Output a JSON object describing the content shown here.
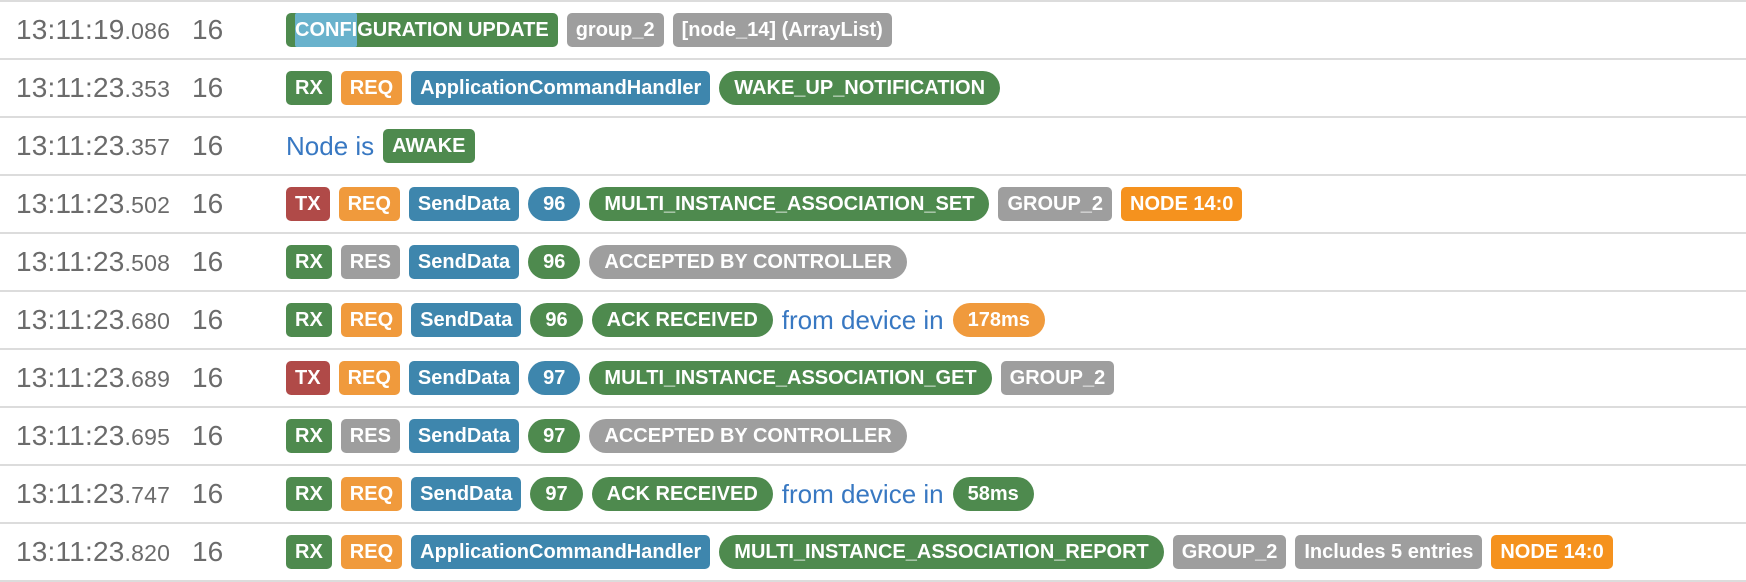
{
  "colors": {
    "green": "#4e8a4e",
    "orange": "#f09a3c",
    "node_orange": "#f5921e",
    "red": "#b04a48",
    "blue": "#3e86ad",
    "gray": "#9e9e9e",
    "text_blue": "#3878c2",
    "time_gray": "#6b6b6b",
    "selection": "#69b2cc",
    "separator": "#dcdcdc"
  },
  "rows": [
    {
      "time": "13:11:19",
      "ms": ".086",
      "node": "16",
      "entries": [
        {
          "kind": "badge",
          "color": "green",
          "label": "CONFIGURATION UPDATE",
          "selected_prefix": "CONFI"
        },
        {
          "kind": "badge",
          "color": "gray",
          "label": "group_2"
        },
        {
          "kind": "badge",
          "color": "gray",
          "label": "[node_14] (ArrayList)"
        }
      ]
    },
    {
      "time": "13:11:23",
      "ms": ".353",
      "node": "16",
      "entries": [
        {
          "kind": "badge",
          "color": "green",
          "label": "RX"
        },
        {
          "kind": "badge",
          "color": "orange",
          "label": "REQ"
        },
        {
          "kind": "badge",
          "color": "blue",
          "label": "ApplicationCommandHandler"
        },
        {
          "kind": "pill",
          "color": "green",
          "label": "WAKE_UP_NOTIFICATION"
        }
      ]
    },
    {
      "time": "13:11:23",
      "ms": ".357",
      "node": "16",
      "entries": [
        {
          "kind": "text",
          "color": "text_blue",
          "label": "Node is"
        },
        {
          "kind": "badge",
          "color": "green",
          "label": "AWAKE"
        }
      ]
    },
    {
      "time": "13:11:23",
      "ms": ".502",
      "node": "16",
      "entries": [
        {
          "kind": "badge",
          "color": "red",
          "label": "TX"
        },
        {
          "kind": "badge",
          "color": "orange",
          "label": "REQ"
        },
        {
          "kind": "badge",
          "color": "blue",
          "label": "SendData"
        },
        {
          "kind": "pill",
          "color": "blue",
          "label": "96"
        },
        {
          "kind": "pill",
          "color": "green",
          "label": "MULTI_INSTANCE_ASSOCIATION_SET"
        },
        {
          "kind": "badge",
          "color": "gray",
          "label": "GROUP_2"
        },
        {
          "kind": "badge",
          "color": "node_orange",
          "label": "NODE 14:0"
        }
      ]
    },
    {
      "time": "13:11:23",
      "ms": ".508",
      "node": "16",
      "entries": [
        {
          "kind": "badge",
          "color": "green",
          "label": "RX"
        },
        {
          "kind": "badge",
          "color": "gray",
          "label": "RES"
        },
        {
          "kind": "badge",
          "color": "blue",
          "label": "SendData"
        },
        {
          "kind": "pill",
          "color": "green",
          "label": "96"
        },
        {
          "kind": "pill",
          "color": "gray",
          "label": "ACCEPTED BY CONTROLLER"
        }
      ]
    },
    {
      "time": "13:11:23",
      "ms": ".680",
      "node": "16",
      "entries": [
        {
          "kind": "badge",
          "color": "green",
          "label": "RX"
        },
        {
          "kind": "badge",
          "color": "orange",
          "label": "REQ"
        },
        {
          "kind": "badge",
          "color": "blue",
          "label": "SendData"
        },
        {
          "kind": "pill",
          "color": "green",
          "label": "96"
        },
        {
          "kind": "pill",
          "color": "green",
          "label": "ACK RECEIVED"
        },
        {
          "kind": "text",
          "color": "text_blue",
          "label": "from device in"
        },
        {
          "kind": "pill",
          "color": "orange",
          "label": "178ms"
        }
      ]
    },
    {
      "time": "13:11:23",
      "ms": ".689",
      "node": "16",
      "entries": [
        {
          "kind": "badge",
          "color": "red",
          "label": "TX"
        },
        {
          "kind": "badge",
          "color": "orange",
          "label": "REQ"
        },
        {
          "kind": "badge",
          "color": "blue",
          "label": "SendData"
        },
        {
          "kind": "pill",
          "color": "blue",
          "label": "97"
        },
        {
          "kind": "pill",
          "color": "green",
          "label": "MULTI_INSTANCE_ASSOCIATION_GET"
        },
        {
          "kind": "badge",
          "color": "gray",
          "label": "GROUP_2"
        }
      ]
    },
    {
      "time": "13:11:23",
      "ms": ".695",
      "node": "16",
      "entries": [
        {
          "kind": "badge",
          "color": "green",
          "label": "RX"
        },
        {
          "kind": "badge",
          "color": "gray",
          "label": "RES"
        },
        {
          "kind": "badge",
          "color": "blue",
          "label": "SendData"
        },
        {
          "kind": "pill",
          "color": "green",
          "label": "97"
        },
        {
          "kind": "pill",
          "color": "gray",
          "label": "ACCEPTED BY CONTROLLER"
        }
      ]
    },
    {
      "time": "13:11:23",
      "ms": ".747",
      "node": "16",
      "entries": [
        {
          "kind": "badge",
          "color": "green",
          "label": "RX"
        },
        {
          "kind": "badge",
          "color": "orange",
          "label": "REQ"
        },
        {
          "kind": "badge",
          "color": "blue",
          "label": "SendData"
        },
        {
          "kind": "pill",
          "color": "green",
          "label": "97"
        },
        {
          "kind": "pill",
          "color": "green",
          "label": "ACK RECEIVED"
        },
        {
          "kind": "text",
          "color": "text_blue",
          "label": "from device in"
        },
        {
          "kind": "pill",
          "color": "green",
          "label": "58ms"
        }
      ]
    },
    {
      "time": "13:11:23",
      "ms": ".820",
      "node": "16",
      "entries": [
        {
          "kind": "badge",
          "color": "green",
          "label": "RX"
        },
        {
          "kind": "badge",
          "color": "orange",
          "label": "REQ"
        },
        {
          "kind": "badge",
          "color": "blue",
          "label": "ApplicationCommandHandler"
        },
        {
          "kind": "pill",
          "color": "green",
          "label": "MULTI_INSTANCE_ASSOCIATION_REPORT"
        },
        {
          "kind": "badge",
          "color": "gray",
          "label": "GROUP_2"
        },
        {
          "kind": "badge",
          "color": "gray",
          "label": "Includes 5 entries"
        },
        {
          "kind": "badge",
          "color": "node_orange",
          "label": "NODE 14:0"
        }
      ]
    }
  ]
}
